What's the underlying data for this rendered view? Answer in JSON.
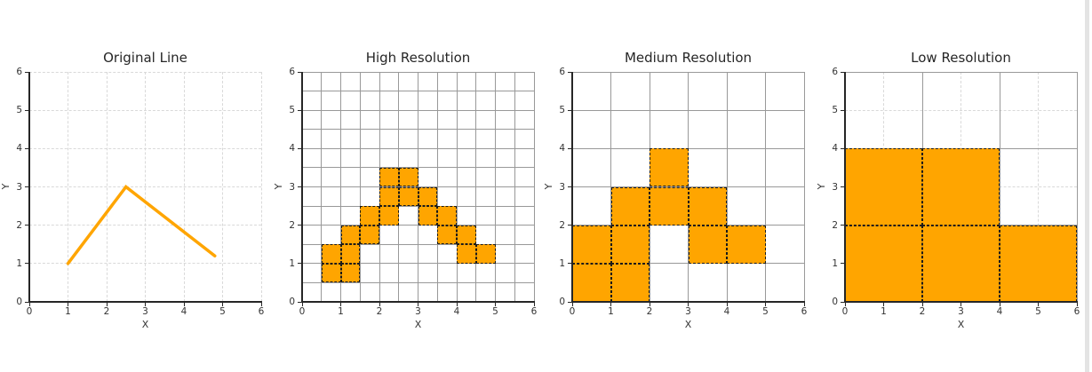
{
  "page": {
    "background": "#ffffff",
    "scrollbar_color": "#e4e4e4"
  },
  "figure": {
    "accent_orange": "#FFA500",
    "grid_light": "#d9d9d9",
    "grid_solid": "#999999",
    "cell_edge": "#1a1a1a",
    "spine_color": "#262626"
  },
  "chart_data": [
    {
      "type": "line",
      "title": "Original Line",
      "xlabel": "X",
      "ylabel": "Y",
      "xlim": [
        0,
        6
      ],
      "ylim": [
        0,
        6
      ],
      "xticks": [
        "0",
        "1",
        "2",
        "3",
        "4",
        "5",
        "6"
      ],
      "yticks": [
        "0",
        "1",
        "2",
        "3",
        "4",
        "5",
        "6"
      ],
      "grid": "light-dashed-at-integers",
      "line": {
        "x": [
          1.0,
          2.5,
          4.8
        ],
        "y": [
          1.0,
          3.0,
          1.2
        ],
        "color": "#FFA500",
        "width": 3.5
      }
    },
    {
      "type": "heatmap",
      "title": "High Resolution",
      "xlabel": "X",
      "ylabel": "Y",
      "xlim": [
        0,
        6
      ],
      "ylim": [
        0,
        6
      ],
      "xticks": [
        "0",
        "1",
        "2",
        "3",
        "4",
        "5",
        "6"
      ],
      "yticks": [
        "0",
        "1",
        "2",
        "3",
        "4",
        "5",
        "6"
      ],
      "grid": "solid-gray-at-resolution-plus-light-dashed-integers",
      "resolution": 0.5,
      "cell_color": "#FFA500",
      "cells": [
        [
          0.5,
          0.5
        ],
        [
          1.0,
          0.5
        ],
        [
          0.5,
          1.0
        ],
        [
          1.0,
          1.0
        ],
        [
          4.0,
          1.0
        ],
        [
          4.5,
          1.0
        ],
        [
          1.0,
          1.5
        ],
        [
          1.5,
          1.5
        ],
        [
          3.5,
          1.5
        ],
        [
          4.0,
          1.5
        ],
        [
          1.5,
          2.0
        ],
        [
          2.0,
          2.0
        ],
        [
          3.0,
          2.0
        ],
        [
          3.5,
          2.0
        ],
        [
          2.0,
          2.5
        ],
        [
          2.5,
          2.5
        ],
        [
          3.0,
          2.5
        ],
        [
          2.0,
          3.0
        ],
        [
          2.5,
          3.0
        ]
      ]
    },
    {
      "type": "heatmap",
      "title": "Medium Resolution",
      "xlabel": "X",
      "ylabel": "Y",
      "xlim": [
        0,
        6
      ],
      "ylim": [
        0,
        6
      ],
      "xticks": [
        "0",
        "1",
        "2",
        "3",
        "4",
        "5",
        "6"
      ],
      "yticks": [
        "0",
        "1",
        "2",
        "3",
        "4",
        "5",
        "6"
      ],
      "grid": "solid-gray-at-resolution-plus-light-dashed-integers",
      "resolution": 1.0,
      "cell_color": "#FFA500",
      "cells": [
        [
          0,
          0
        ],
        [
          1,
          0
        ],
        [
          0,
          1
        ],
        [
          1,
          1
        ],
        [
          3,
          1
        ],
        [
          4,
          1
        ],
        [
          1,
          2
        ],
        [
          2,
          2
        ],
        [
          3,
          2
        ],
        [
          2,
          3
        ]
      ]
    },
    {
      "type": "heatmap",
      "title": "Low Resolution",
      "xlabel": "X",
      "ylabel": "Y",
      "xlim": [
        0,
        6
      ],
      "ylim": [
        0,
        6
      ],
      "xticks": [
        "0",
        "1",
        "2",
        "3",
        "4",
        "5",
        "6"
      ],
      "yticks": [
        "0",
        "1",
        "2",
        "3",
        "4",
        "5",
        "6"
      ],
      "grid": "solid-gray-at-resolution-plus-light-dashed-integers",
      "resolution": 2.0,
      "cell_color": "#FFA500",
      "cells": [
        [
          0,
          0
        ],
        [
          2,
          0
        ],
        [
          4,
          0
        ],
        [
          0,
          2
        ],
        [
          2,
          2
        ]
      ]
    }
  ]
}
